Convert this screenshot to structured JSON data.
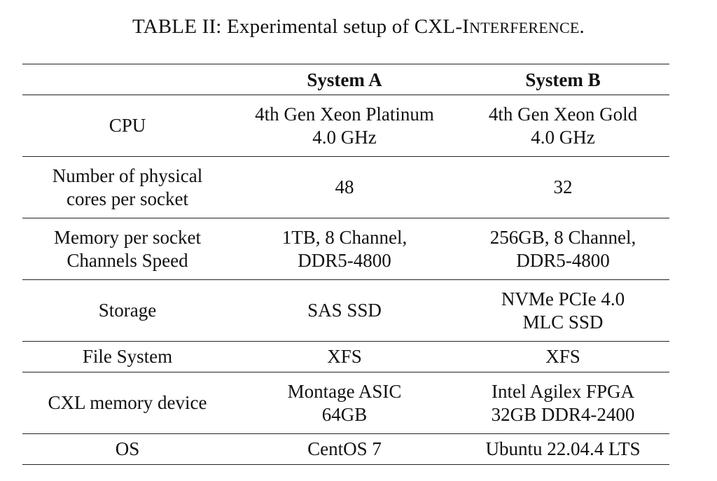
{
  "caption": {
    "prefix": "TABLE II: Experimental setup of CXL-",
    "sc_first": "I",
    "sc_rest": "nterference",
    "suffix": "."
  },
  "table": {
    "header": [
      "",
      "System A",
      "System B"
    ],
    "rows": [
      {
        "label": [
          "CPU"
        ],
        "a": [
          "4th Gen Xeon Platinum",
          "4.0 GHz"
        ],
        "b": [
          "4th Gen Xeon Gold",
          "4.0 GHz"
        ]
      },
      {
        "label": [
          "Number of physical",
          "cores per socket"
        ],
        "a": [
          "48"
        ],
        "b": [
          "32"
        ]
      },
      {
        "label": [
          "Memory per socket",
          "Channels Speed"
        ],
        "a": [
          "1TB, 8 Channel,",
          "DDR5-4800"
        ],
        "b": [
          "256GB, 8 Channel,",
          "DDR5-4800"
        ]
      },
      {
        "label": [
          "Storage"
        ],
        "a": [
          "SAS SSD"
        ],
        "b": [
          "NVMe PCIe 4.0",
          "MLC SSD"
        ]
      },
      {
        "label": [
          "File System"
        ],
        "a": [
          "XFS"
        ],
        "b": [
          "XFS"
        ]
      },
      {
        "label": [
          "CXL memory device"
        ],
        "a": [
          "Montage ASIC",
          "64GB"
        ],
        "b": [
          "Intel Agilex FPGA",
          "32GB DDR4-2400"
        ]
      },
      {
        "label": [
          "OS"
        ],
        "a": [
          "CentOS 7"
        ],
        "b": [
          "Ubuntu 22.04.4 LTS"
        ]
      }
    ]
  }
}
